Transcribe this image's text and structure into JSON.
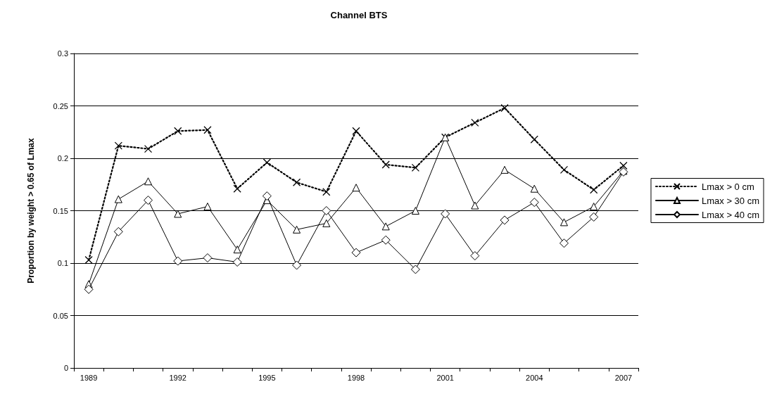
{
  "chart_data": {
    "type": "line",
    "title": "Channel BTS",
    "ylabel": "Proportion by weight > 0.65 of Lmax",
    "categories": [
      "1989",
      null,
      null,
      "1992",
      null,
      null,
      "1995",
      null,
      null,
      "1998",
      null,
      null,
      "2001",
      null,
      null,
      "2004",
      null,
      null,
      "2007"
    ],
    "series": [
      {
        "name": "Lmax > 0 cm",
        "color": "#000000",
        "marker": "cross",
        "line_style": "dotted",
        "values": [
          0.103,
          0.212,
          0.209,
          0.226,
          0.227,
          0.171,
          0.196,
          0.177,
          0.168,
          0.226,
          0.194,
          0.191,
          0.22,
          0.234,
          0.248,
          0.218,
          0.189,
          0.17,
          0.193
        ]
      },
      {
        "name": "Lmax > 30 cm",
        "color": "#000000",
        "marker": "triangle",
        "line_style": "solid",
        "values": [
          0.08,
          0.161,
          0.178,
          0.147,
          0.154,
          0.113,
          0.16,
          0.132,
          0.138,
          0.172,
          0.135,
          0.15,
          0.22,
          0.155,
          0.189,
          0.171,
          0.139,
          0.154,
          0.188
        ]
      },
      {
        "name": "Lmax > 40 cm",
        "color": "#000000",
        "marker": "diamond",
        "line_style": "solid",
        "values": [
          0.075,
          0.13,
          0.16,
          0.102,
          0.105,
          0.101,
          0.164,
          0.098,
          0.15,
          0.11,
          0.122,
          0.094,
          0.147,
          0.107,
          0.141,
          0.158,
          0.119,
          0.144,
          0.187
        ]
      }
    ],
    "ylim": [
      0,
      0.3
    ],
    "yticks": [
      0,
      0.05,
      0.1,
      0.15,
      0.2,
      0.25,
      0.3
    ],
    "grid": "y",
    "legend": "right"
  }
}
